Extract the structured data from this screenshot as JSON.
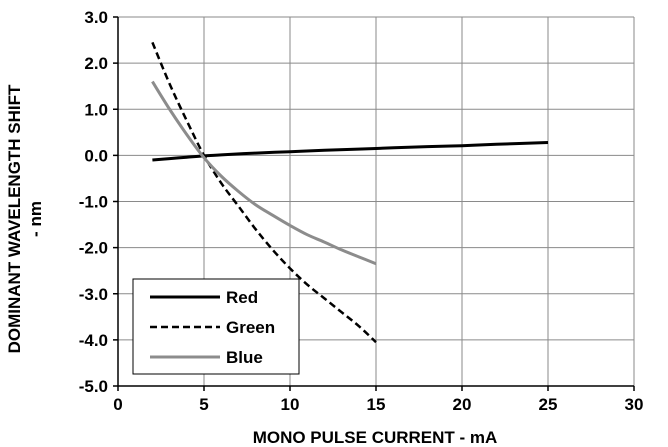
{
  "chart_data": {
    "type": "line",
    "title": "",
    "xlabel": "MONO PULSE CURRENT - mA",
    "ylabel_line1": "DOMINANT WAVELENGTH SHIFT",
    "ylabel_line2": "- nm",
    "xlim": [
      0,
      30
    ],
    "ylim": [
      -5,
      3
    ],
    "xticks": [
      0,
      5,
      10,
      15,
      20,
      25,
      30
    ],
    "yticks": [
      3,
      2,
      1,
      0,
      -1,
      -2,
      -3,
      -4,
      -5
    ],
    "xtick_labels": [
      "0",
      "5",
      "10",
      "15",
      "20",
      "25",
      "30"
    ],
    "ytick_labels": [
      "3.0",
      "2.0",
      "1.0",
      "0.0",
      "-1.0",
      "-2.0",
      "-3.0",
      "-4.0",
      "-5.0"
    ],
    "grid": true,
    "legend_position": "bottom-left",
    "series": [
      {
        "name": "Red",
        "color": "#000000",
        "style": "solid",
        "x": [
          2,
          3,
          4,
          5,
          6,
          8,
          10,
          12,
          15,
          18,
          20,
          22,
          25
        ],
        "y": [
          -0.1,
          -0.07,
          -0.04,
          -0.01,
          0.01,
          0.05,
          0.08,
          0.11,
          0.15,
          0.19,
          0.21,
          0.24,
          0.28
        ]
      },
      {
        "name": "Green",
        "color": "#000000",
        "style": "dashed",
        "x": [
          2,
          3,
          4,
          5,
          6,
          7,
          8,
          9,
          10,
          11,
          12,
          13,
          14,
          15
        ],
        "y": [
          2.45,
          1.55,
          0.75,
          0.0,
          -0.6,
          -1.1,
          -1.6,
          -2.05,
          -2.45,
          -2.8,
          -3.1,
          -3.4,
          -3.7,
          -4.05
        ]
      },
      {
        "name": "Blue",
        "color": "#8c8c8c",
        "style": "solid",
        "x": [
          2,
          3,
          4,
          5,
          6,
          7,
          8,
          9,
          10,
          11,
          12,
          13,
          14,
          15
        ],
        "y": [
          1.6,
          1.0,
          0.45,
          -0.05,
          -0.45,
          -0.78,
          -1.07,
          -1.3,
          -1.52,
          -1.72,
          -1.88,
          -2.05,
          -2.2,
          -2.35
        ]
      }
    ]
  }
}
